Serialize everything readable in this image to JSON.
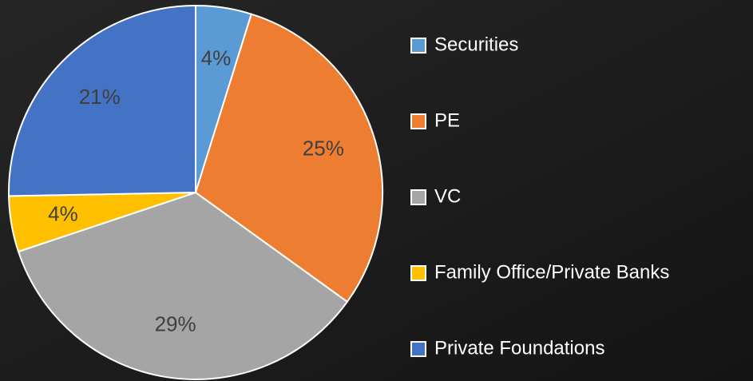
{
  "chart_data": {
    "type": "pie",
    "categories": [
      "Securities",
      "PE",
      "VC",
      "Family Office/Private Banks",
      "Private Foundations"
    ],
    "values": [
      4,
      25,
      29,
      4,
      21
    ],
    "value_labels": [
      "4%",
      "25%",
      "29%",
      "4%",
      "21%"
    ],
    "colors": [
      "#5b9bd5",
      "#ed7d31",
      "#a5a5a5",
      "#ffc000",
      "#4472c4"
    ],
    "legend": "right"
  }
}
